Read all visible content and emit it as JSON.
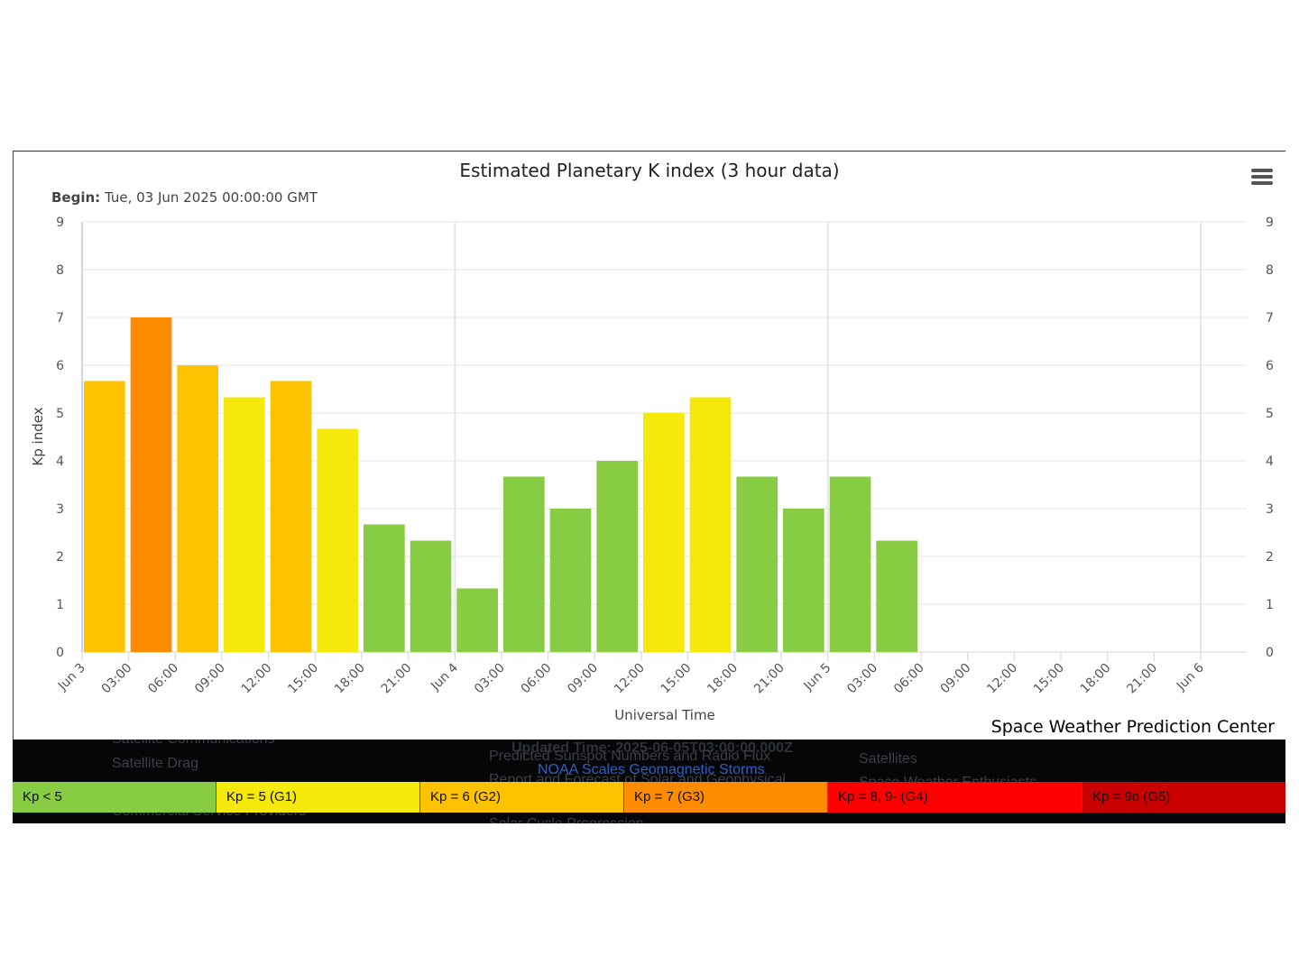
{
  "chart_data": {
    "type": "bar",
    "title": "Estimated Planetary K index (3 hour data)",
    "begin_label": "Begin:",
    "begin_value": "Tue, 03 Jun 2025 00:00:00 GMT",
    "ylabel": "Kp index",
    "xlabel": "Universal Time",
    "ylim": [
      0,
      9
    ],
    "y_ticks": [
      "0",
      "1",
      "2",
      "3",
      "4",
      "5",
      "6",
      "7",
      "8",
      "9"
    ],
    "grid": true,
    "x_tick_labels": [
      "Jun 3",
      "03:00",
      "06:00",
      "09:00",
      "12:00",
      "15:00",
      "18:00",
      "21:00",
      "Jun 4",
      "03:00",
      "06:00",
      "09:00",
      "12:00",
      "15:00",
      "18:00",
      "21:00",
      "Jun 5",
      "03:00",
      "06:00",
      "09:00",
      "12:00",
      "15:00",
      "18:00",
      "21:00",
      "Jun 6"
    ],
    "values": [
      5.67,
      7.0,
      6.0,
      5.33,
      5.67,
      4.67,
      2.67,
      2.33,
      1.33,
      3.67,
      3.0,
      4.0,
      5.0,
      5.33,
      3.67,
      3.0,
      3.67,
      2.33
    ],
    "colors": [
      "#fdc300",
      "#ff8c00",
      "#fdc300",
      "#f4e90a",
      "#fdc300",
      "#f4e90a",
      "#88cc44",
      "#88cc44",
      "#88cc44",
      "#88cc44",
      "#88cc44",
      "#88cc44",
      "#f4e90a",
      "#f4e90a",
      "#88cc44",
      "#88cc44",
      "#88cc44",
      "#88cc44"
    ]
  },
  "credit": "Space Weather Prediction Center",
  "legend": [
    {
      "label": "Kp < 5",
      "color": "#88cc44"
    },
    {
      "label": "Kp = 5 (G1)",
      "color": "#f4e90a"
    },
    {
      "label": "Kp = 6 (G2)",
      "color": "#fdc300"
    },
    {
      "label": "Kp = 7 (G3)",
      "color": "#ff8c00"
    },
    {
      "label": "Kp = 8, 9- (G4)",
      "color": "#ff0000"
    },
    {
      "label": "Kp = 9o (G5)",
      "color": "#c80000"
    }
  ],
  "background_text": {
    "satellite_comms": "Satellite Communications",
    "satellite_drag": "Satellite Drag",
    "updated_time": "Updated Time: 2025-06-05T03:00:00.000Z",
    "predicted_sunspot": "Predicted Sunspot Numbers and Radio Flux",
    "noaa_scales_link": "NOAA Scales Geomagnetic Storms",
    "report_forecast": "Report and Forecast of Solar and Geophysical",
    "satellites": "Satellites",
    "enthusiasts": "Space Weather Enthusiasts",
    "commercial": "Commercial Service Providers",
    "solar_cycle": "Solar Cycle Progression"
  }
}
